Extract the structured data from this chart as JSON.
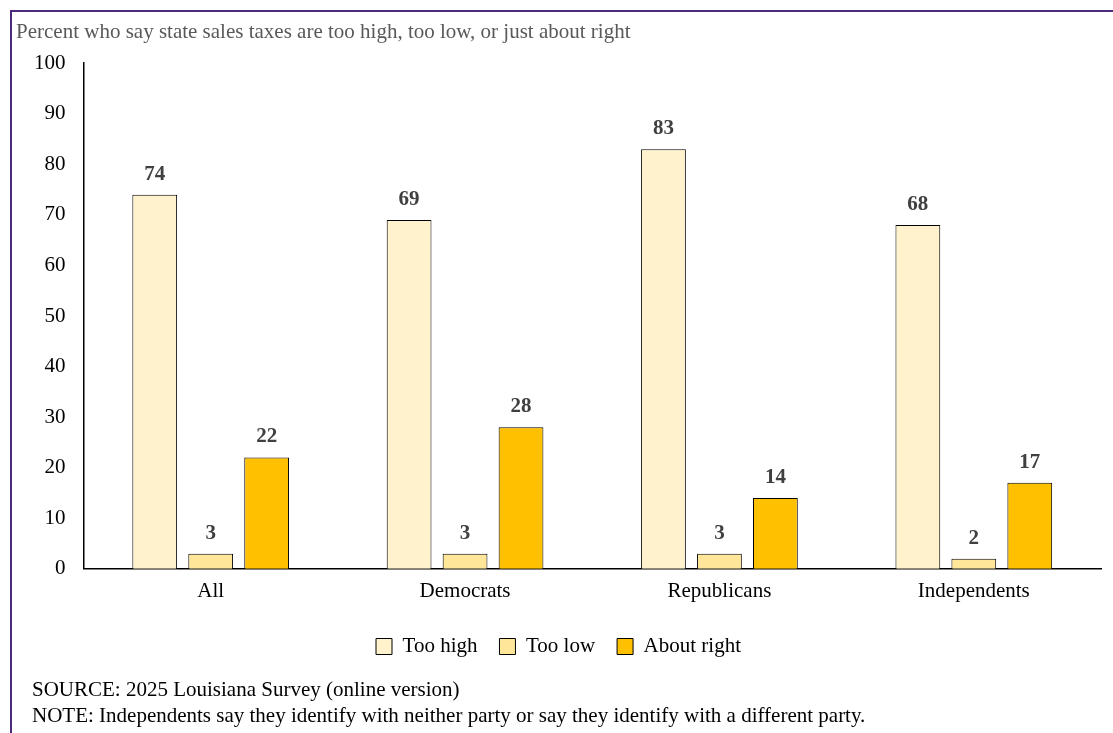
{
  "chart_data": {
    "type": "bar",
    "title": "Percent who say state sales taxes are too high, too low, or just about right",
    "categories": [
      "All",
      "Democrats",
      "Republicans",
      "Independents"
    ],
    "series": [
      {
        "name": "Too high",
        "color": "#fff2cc",
        "values": [
          74,
          69,
          83,
          68
        ]
      },
      {
        "name": "Too low",
        "color": "#ffe699",
        "values": [
          3,
          3,
          3,
          2
        ]
      },
      {
        "name": "About right",
        "color": "#ffc000",
        "values": [
          22,
          28,
          14,
          17
        ]
      }
    ],
    "ylim": [
      0,
      100
    ],
    "yticks": [
      0,
      10,
      20,
      30,
      40,
      50,
      60,
      70,
      80,
      90,
      100
    ],
    "grid": false,
    "legend": "bottom",
    "data_labels": true,
    "annotations": [
      "SOURCE: 2025 Louisiana Survey (online version)",
      "NOTE: Independents say they identify with neither party or say they identify with a different party."
    ]
  }
}
